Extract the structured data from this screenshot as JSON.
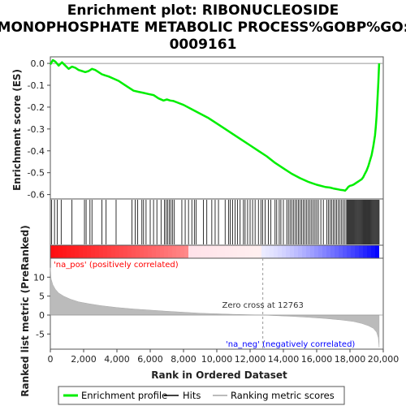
{
  "chart_data": {
    "type": "line",
    "title_lines": [
      "Enrichment plot: RIBONUCLEOSIDE",
      "MONOPHOSPHATE METABOLIC PROCESS%GOBP%GO:",
      "0009161"
    ],
    "xlabel": "Rank in Ordered Dataset",
    "ylabel_top": "Enrichment score (ES)",
    "ylabel_bottom": "Ranked list metric (PreRanked)",
    "xlim": [
      0,
      20000
    ],
    "es_ylim": [
      -0.62,
      0.03
    ],
    "metric_ylim": [
      -9,
      15
    ],
    "x_ticks": [
      0,
      2000,
      4000,
      6000,
      8000,
      10000,
      12000,
      14000,
      16000,
      18000,
      20000
    ],
    "x_tick_labels": [
      "0",
      "2,000",
      "4,000",
      "6,000",
      "8,000",
      "10,000",
      "12,000",
      "14,000",
      "16,000",
      "18,000",
      "20,000"
    ],
    "es_ticks": [
      0.0,
      -0.1,
      -0.2,
      -0.3,
      -0.4,
      -0.5,
      -0.6
    ],
    "es_tick_labels": [
      "0.0",
      "-0.1",
      "-0.2",
      "-0.3",
      "-0.4",
      "-0.5",
      "-0.6"
    ],
    "metric_ticks": [
      10,
      5,
      0,
      -5
    ],
    "metric_tick_labels": [
      "10",
      "5",
      "0",
      "-5"
    ],
    "enrichment_profile": {
      "name": "Enrichment profile",
      "color": "#00ee00",
      "x": [
        0,
        150,
        300,
        500,
        700,
        900,
        1100,
        1300,
        1500,
        1700,
        1900,
        2100,
        2300,
        2500,
        2700,
        2900,
        3100,
        3300,
        3500,
        3800,
        4100,
        4400,
        4700,
        5000,
        5300,
        5600,
        5900,
        6200,
        6500,
        6800,
        7000,
        7200,
        7400,
        7600,
        8000,
        8500,
        9000,
        9500,
        10000,
        10500,
        11000,
        11500,
        12000,
        12500,
        13000,
        13500,
        14000,
        14500,
        15000,
        15500,
        16000,
        16500,
        16800,
        17000,
        17200,
        17400,
        17600,
        17700,
        17800,
        17900,
        18000,
        18100,
        18200,
        18300,
        18400,
        18500,
        18600,
        18700,
        18800,
        18900,
        19000,
        19100,
        19200,
        19300,
        19400,
        19500,
        19550,
        19600,
        19650,
        19700,
        19750
      ],
      "y": [
        -0.005,
        0.015,
        0.008,
        -0.01,
        0.005,
        -0.01,
        -0.025,
        -0.015,
        -0.02,
        -0.03,
        -0.035,
        -0.04,
        -0.035,
        -0.025,
        -0.03,
        -0.04,
        -0.05,
        -0.055,
        -0.06,
        -0.07,
        -0.08,
        -0.095,
        -0.11,
        -0.125,
        -0.13,
        -0.135,
        -0.14,
        -0.145,
        -0.16,
        -0.17,
        -0.165,
        -0.17,
        -0.172,
        -0.178,
        -0.19,
        -0.21,
        -0.23,
        -0.25,
        -0.275,
        -0.3,
        -0.325,
        -0.35,
        -0.375,
        -0.4,
        -0.425,
        -0.455,
        -0.48,
        -0.505,
        -0.525,
        -0.542,
        -0.555,
        -0.565,
        -0.568,
        -0.572,
        -0.575,
        -0.578,
        -0.58,
        -0.582,
        -0.575,
        -0.565,
        -0.56,
        -0.558,
        -0.555,
        -0.55,
        -0.545,
        -0.54,
        -0.535,
        -0.53,
        -0.52,
        -0.505,
        -0.49,
        -0.47,
        -0.445,
        -0.42,
        -0.38,
        -0.33,
        -0.29,
        -0.24,
        -0.17,
        -0.09,
        0.0
      ]
    },
    "hits": {
      "name": "Hits",
      "color": "#000000",
      "x": [
        80,
        250,
        420,
        650,
        1300,
        2050,
        2150,
        2380,
        2500,
        3100,
        3350,
        3950,
        4900,
        5100,
        5250,
        5500,
        5600,
        5750,
        6000,
        6200,
        6400,
        6650,
        6850,
        6950,
        7050,
        7150,
        7250,
        7350,
        7450,
        7900,
        8100,
        8300,
        8500,
        8650,
        8750,
        9200,
        9400,
        9700,
        9900,
        10100,
        10500,
        10700,
        10800,
        10950,
        11100,
        11250,
        11400,
        11600,
        11700,
        11850,
        12000,
        12150,
        12300,
        12500,
        12650,
        12750,
        12900,
        13100,
        13250,
        13500,
        13600,
        13750,
        13850,
        14000,
        14200,
        14300,
        14400,
        14500,
        14600,
        14700,
        14800,
        14900,
        15000,
        15100,
        15200,
        15300,
        15400,
        15500,
        15600,
        15700,
        15800,
        15900,
        16000,
        16100,
        16250,
        16400,
        16600,
        16700,
        16800,
        16900,
        17000,
        17100,
        17200,
        17300,
        17400,
        17500,
        17600,
        17700,
        17800,
        17850,
        17900,
        17950,
        18000,
        18050,
        18100,
        18150,
        18200,
        18250,
        18300,
        18350,
        18400,
        18450,
        18500,
        18550,
        18600,
        18650,
        18700,
        18750,
        18800,
        18850,
        18900,
        18950,
        19000,
        19050,
        19100,
        19150,
        19200,
        19250,
        19300,
        19350,
        19400,
        19450,
        19500,
        19550,
        19600,
        19650,
        19700,
        19750
      ]
    },
    "ranking_metric": {
      "name": "Ranking metric scores",
      "color": "#bbbbbb",
      "x": [
        0,
        50,
        150,
        300,
        500,
        800,
        1200,
        1700,
        2300,
        3000,
        4000,
        5000,
        6000,
        7000,
        8000,
        9000,
        10000,
        11000,
        12000,
        12763,
        13500,
        14500,
        15500,
        16500,
        17500,
        18200,
        18700,
        19100,
        19400,
        19600,
        19700,
        19750
      ],
      "y": [
        12.5,
        9.5,
        8.0,
        6.8,
        5.8,
        5.0,
        4.2,
        3.5,
        3.0,
        2.5,
        2.0,
        1.6,
        1.3,
        1.0,
        0.75,
        0.5,
        0.35,
        0.2,
        0.08,
        0.0,
        -0.15,
        -0.35,
        -0.6,
        -0.9,
        -1.3,
        -1.7,
        -2.2,
        -2.8,
        -3.5,
        -4.5,
        -6.0,
        -8.5
      ]
    },
    "legend_labels": [
      "Enrichment profile",
      "Hits",
      "Ranking metric scores"
    ],
    "annotations": {
      "na_pos": "'na_pos' (positively correlated)",
      "na_neg": "'na_neg' (negatively correlated)",
      "zero_cross": "Zero cross at 12763",
      "zero_cross_x": 12763
    },
    "colors": {
      "pos_label": "#ff0000",
      "neg_label": "#0000ff"
    }
  }
}
